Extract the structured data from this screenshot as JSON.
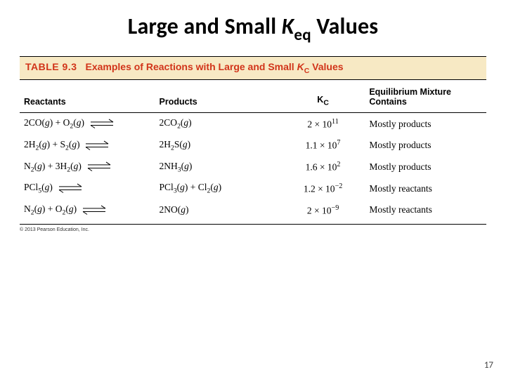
{
  "title": {
    "pre": "Large and Small ",
    "var": "K",
    "sub": "eq",
    "post": " Values"
  },
  "caption": {
    "number": "TABLE 9.3",
    "pre": "Examples of Reactions with Large and Small ",
    "var": "K",
    "sub": "C",
    "post": " Values",
    "bg_color": "#f7e9c4",
    "num_color": "#d1341a",
    "text_color": "#d1341a"
  },
  "columns": {
    "reactants": "Reactants",
    "products": "Products",
    "kc_var": "K",
    "kc_sub": "C",
    "mixture_line1": "Equilibrium Mixture",
    "mixture_line2": "Contains"
  },
  "rows": [
    {
      "reactants_html": "2CO(<i>g</i>) + O<sub>2</sub>(<i>g</i>)",
      "products_html": "2CO<sub>2</sub>(<i>g</i>)",
      "kc_html": "2 × 10<sup class=\"exp\">11</sup>",
      "mixture": "Mostly products"
    },
    {
      "reactants_html": "2H<sub>2</sub>(<i>g</i>) + S<sub>2</sub>(<i>g</i>)",
      "products_html": "2H<sub>2</sub>S(<i>g</i>)",
      "kc_html": "1.1 × 10<sup class=\"exp\">7</sup>",
      "mixture": "Mostly products"
    },
    {
      "reactants_html": "N<sub>2</sub>(<i>g</i>) + 3H<sub>2</sub>(<i>g</i>)",
      "products_html": "2NH<sub>3</sub>(<i>g</i>)",
      "kc_html": "1.6 × 10<sup class=\"exp\">2</sup>",
      "mixture": "Mostly products"
    },
    {
      "reactants_html": "PCl<sub>5</sub>(<i>g</i>)",
      "products_html": "PCl<sub>3</sub>(<i>g</i>) + Cl<sub>2</sub>(<i>g</i>)",
      "kc_html": "1.2 × 10<sup class=\"exp\">−2</sup>",
      "mixture": "Mostly reactants"
    },
    {
      "reactants_html": "N<sub>2</sub>(<i>g</i>) + O<sub>2</sub>(<i>g</i>)",
      "products_html": "2NO(<i>g</i>)",
      "kc_html": "2 × 10<sup class=\"exp\">−9</sup>",
      "mixture": "Mostly reactants"
    }
  ],
  "arrow": {
    "color": "#000000",
    "width": 36,
    "height": 14
  },
  "copyright": "© 2013 Pearson Education, Inc.",
  "page_number": "17"
}
